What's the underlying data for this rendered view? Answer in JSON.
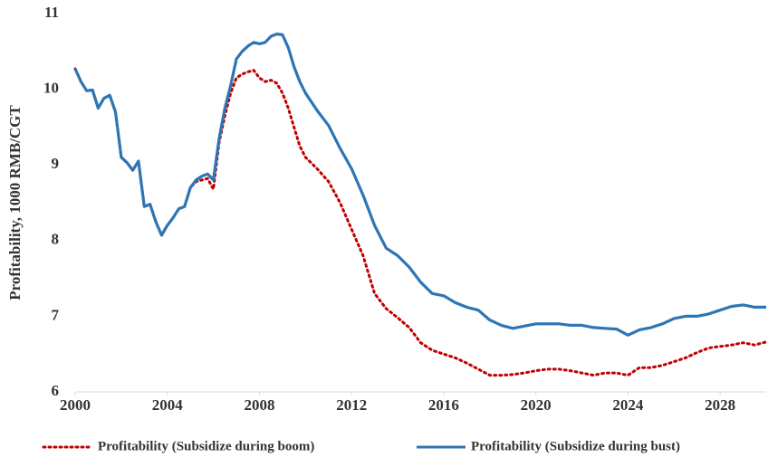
{
  "chart_data": {
    "type": "line",
    "y_label": "Profitability, 1000 RMB/CGT",
    "x": [
      2000,
      2000.25,
      2000.5,
      2000.75,
      2001,
      2001.25,
      2001.5,
      2001.75,
      2002,
      2002.25,
      2002.5,
      2002.75,
      2003,
      2003.25,
      2003.5,
      2003.75,
      2004,
      2004.25,
      2004.5,
      2004.75,
      2005,
      2005.25,
      2005.5,
      2005.75,
      2006,
      2006.25,
      2006.5,
      2006.75,
      2007,
      2007.25,
      2007.5,
      2007.75,
      2008,
      2008.25,
      2008.5,
      2008.75,
      2009,
      2009.25,
      2009.5,
      2009.75,
      2010,
      2010.5,
      2011,
      2011.5,
      2012,
      2012.5,
      2013,
      2013.5,
      2014,
      2014.5,
      2015,
      2015.5,
      2016,
      2016.5,
      2017,
      2017.5,
      2018,
      2018.5,
      2019,
      2019.5,
      2020,
      2020.5,
      2021,
      2021.5,
      2022,
      2022.5,
      2023,
      2023.5,
      2024,
      2024.5,
      2025,
      2025.5,
      2026,
      2026.5,
      2027,
      2027.5,
      2028,
      2028.5,
      2029,
      2029.5,
      2030
    ],
    "series": [
      {
        "name": "Profitability (Subsidize during boom)",
        "color": "#c00000",
        "dash": "dotted",
        "values": [
          10.27,
          10.1,
          9.98,
          9.99,
          9.75,
          9.88,
          9.92,
          9.7,
          9.1,
          9.03,
          8.93,
          9.05,
          8.45,
          8.48,
          8.25,
          8.07,
          8.2,
          8.3,
          8.42,
          8.45,
          8.7,
          8.78,
          8.8,
          8.82,
          8.68,
          9.3,
          9.65,
          9.95,
          10.15,
          10.2,
          10.23,
          10.25,
          10.15,
          10.1,
          10.12,
          10.08,
          9.95,
          9.75,
          9.5,
          9.25,
          9.1,
          8.95,
          8.78,
          8.5,
          8.15,
          7.8,
          7.3,
          7.1,
          6.98,
          6.85,
          6.65,
          6.55,
          6.5,
          6.45,
          6.38,
          6.3,
          6.22,
          6.22,
          6.23,
          6.25,
          6.28,
          6.3,
          6.3,
          6.28,
          6.25,
          6.22,
          6.25,
          6.25,
          6.22,
          6.32,
          6.32,
          6.35,
          6.4,
          6.45,
          6.52,
          6.58,
          6.6,
          6.62,
          6.65,
          6.62,
          6.66
        ]
      },
      {
        "name": "Profitability (Subsidize during bust)",
        "color": "#2e75b6",
        "dash": "solid",
        "values": [
          10.27,
          10.1,
          9.98,
          9.99,
          9.75,
          9.88,
          9.92,
          9.7,
          9.1,
          9.03,
          8.93,
          9.05,
          8.45,
          8.48,
          8.25,
          8.07,
          8.2,
          8.3,
          8.42,
          8.45,
          8.7,
          8.8,
          8.85,
          8.88,
          8.8,
          9.35,
          9.75,
          10.05,
          10.4,
          10.5,
          10.57,
          10.62,
          10.6,
          10.62,
          10.7,
          10.73,
          10.72,
          10.55,
          10.3,
          10.1,
          9.95,
          9.72,
          9.52,
          9.22,
          8.95,
          8.6,
          8.2,
          7.9,
          7.8,
          7.65,
          7.45,
          7.3,
          7.27,
          7.18,
          7.12,
          7.08,
          6.95,
          6.88,
          6.84,
          6.87,
          6.9,
          6.9,
          6.9,
          6.88,
          6.88,
          6.85,
          6.84,
          6.83,
          6.75,
          6.82,
          6.85,
          6.9,
          6.97,
          7.0,
          7.0,
          7.03,
          7.08,
          7.13,
          7.15,
          7.12,
          7.12
        ]
      }
    ],
    "xlim": [
      2000,
      2030
    ],
    "xticks": [
      2000,
      2004,
      2008,
      2012,
      2016,
      2020,
      2024,
      2028
    ],
    "ylim": [
      6,
      11
    ],
    "yticks": [
      6,
      7,
      8,
      9,
      10,
      11
    ],
    "grid": false,
    "legend": "bottom"
  }
}
